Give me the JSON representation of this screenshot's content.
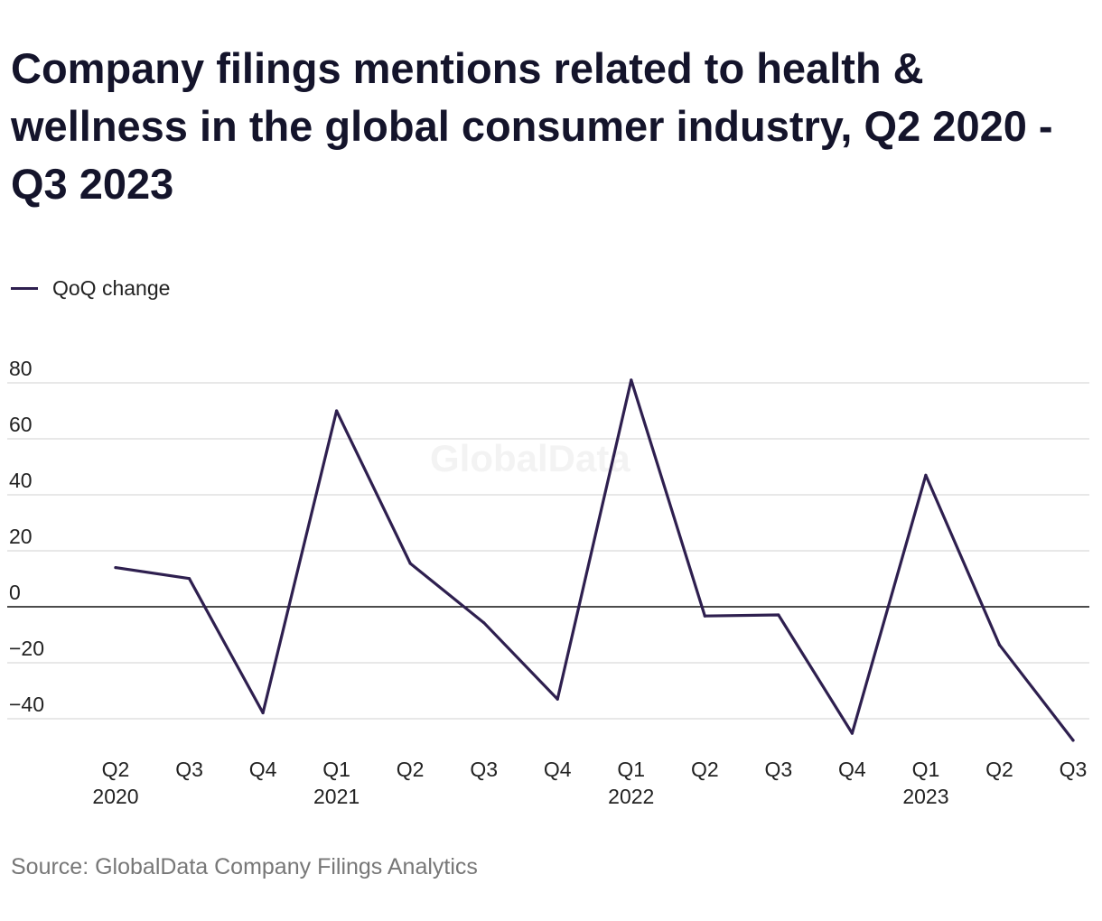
{
  "title": "Company filings mentions related to health & wellness in the global consumer industry, Q2 2020 - Q3 2023",
  "legend": {
    "label": "QoQ change",
    "color": "#2e1f4f"
  },
  "watermark": "GlobalData",
  "source": "Source: GlobalData Company Filings Analytics",
  "colors": {
    "line": "#2e1f4f",
    "grid": "#d9d9d9",
    "zero": "#111111",
    "text": "#222222"
  },
  "chart_data": {
    "type": "line",
    "title": "Company filings mentions related to health & wellness in the global consumer industry, Q2 2020 - Q3 2023",
    "xlabel": "",
    "ylabel": "",
    "ylim": [
      -48,
      84
    ],
    "yticks": [
      80,
      60,
      40,
      20,
      0,
      -20,
      -40
    ],
    "ytick_labels": [
      "80",
      "60",
      "40",
      "20",
      "0",
      "−20",
      "−40"
    ],
    "categories": [
      "Q2 2020",
      "Q3 2020",
      "Q4 2020",
      "Q1 2021",
      "Q2 2021",
      "Q3 2021",
      "Q4 2021",
      "Q1 2022",
      "Q2 2022",
      "Q3 2022",
      "Q4 2022",
      "Q1 2023",
      "Q2 2023",
      "Q3 2023"
    ],
    "xtick_labels": [
      {
        "q": "Q2",
        "year": "2020"
      },
      {
        "q": "Q3",
        "year": ""
      },
      {
        "q": "Q4",
        "year": ""
      },
      {
        "q": "Q1",
        "year": "2021"
      },
      {
        "q": "Q2",
        "year": ""
      },
      {
        "q": "Q3",
        "year": ""
      },
      {
        "q": "Q4",
        "year": ""
      },
      {
        "q": "Q1",
        "year": "2022"
      },
      {
        "q": "Q2",
        "year": ""
      },
      {
        "q": "Q3",
        "year": ""
      },
      {
        "q": "Q4",
        "year": ""
      },
      {
        "q": "Q1",
        "year": "2023"
      },
      {
        "q": "Q2",
        "year": ""
      },
      {
        "q": "Q3",
        "year": ""
      }
    ],
    "grid": true,
    "legend_position": "top-left",
    "series": [
      {
        "name": "QoQ change",
        "values": [
          14.0,
          10.1,
          -37.9,
          70.0,
          15.5,
          -5.7,
          -33.0,
          81.0,
          -3.3,
          -2.9,
          -45.2,
          47.0,
          -13.6,
          -47.7
        ]
      }
    ]
  }
}
